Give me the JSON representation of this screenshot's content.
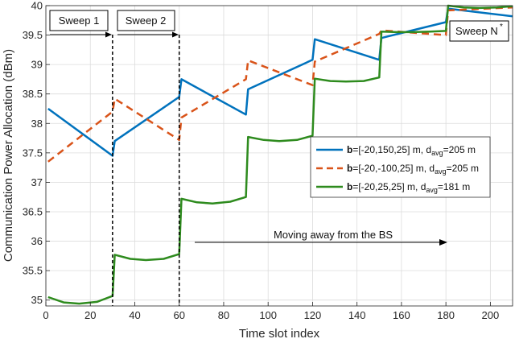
{
  "chart_data": {
    "type": "line",
    "xlabel": "Time slot index",
    "ylabel": "Communication Power Allocation (dBm)",
    "xlim": [
      0,
      210
    ],
    "ylim": [
      34.9,
      40
    ],
    "xticks": [
      0,
      20,
      40,
      60,
      80,
      100,
      120,
      140,
      160,
      180,
      200
    ],
    "yticks": [
      35,
      35.5,
      36,
      36.5,
      37,
      37.5,
      38,
      38.5,
      39,
      39.5,
      40
    ],
    "ytick_labels": [
      "35",
      "35.5",
      "36",
      "36.5",
      "37",
      "37.5",
      "38",
      "38.5",
      "39",
      "39.5",
      "40"
    ],
    "grid": true,
    "legend_position": "right",
    "series": [
      {
        "name": "b=[-20,150,25] m, d_avg=205 m",
        "legend": {
          "bold": "b",
          "pre": "=[-20,150,25] m, d",
          "sub": "avg",
          "post": "=205 m"
        },
        "color": "#0072BD",
        "style": "solid",
        "x": [
          1,
          30,
          31,
          60,
          61,
          90,
          91,
          120,
          121,
          150,
          151,
          180,
          181,
          210
        ],
        "y": [
          38.25,
          37.45,
          37.7,
          38.45,
          38.75,
          38.15,
          38.58,
          39.08,
          39.43,
          39.08,
          39.45,
          39.72,
          39.95,
          39.82
        ]
      },
      {
        "name": "b=[-20,-100,25] m, d_avg=205 m",
        "legend": {
          "bold": "b",
          "pre": "=[-20,-100,25] m, d",
          "sub": "avg",
          "post": "=205 m"
        },
        "color": "#D95319",
        "style": "dashed",
        "x": [
          1,
          30,
          31,
          60,
          61,
          90,
          91,
          120,
          121,
          150,
          151,
          180,
          181,
          210
        ],
        "y": [
          37.35,
          38.2,
          38.42,
          37.72,
          38.1,
          38.75,
          39.07,
          38.65,
          39.05,
          39.52,
          39.58,
          39.5,
          39.92,
          39.97
        ]
      },
      {
        "name": "b=[-20,25,25] m, d_avg=181 m",
        "legend": {
          "bold": "b",
          "pre": "=[-20,25,25] m, d",
          "sub": "avg",
          "post": "=181 m"
        },
        "color": "#2E8B1E",
        "style": "solid",
        "x": [
          1,
          8,
          15,
          23,
          30,
          31,
          38,
          45,
          53,
          60,
          61,
          68,
          75,
          83,
          90,
          91,
          98,
          105,
          113,
          120,
          121,
          128,
          135,
          143,
          150,
          151,
          158,
          165,
          173,
          180,
          181,
          188,
          195,
          203,
          210
        ],
        "y": [
          35.05,
          34.96,
          34.94,
          34.97,
          35.07,
          35.77,
          35.7,
          35.68,
          35.7,
          35.78,
          36.72,
          36.66,
          36.64,
          36.67,
          36.75,
          37.77,
          37.72,
          37.7,
          37.72,
          37.79,
          38.76,
          38.72,
          38.71,
          38.72,
          38.78,
          39.56,
          39.55,
          39.55,
          39.56,
          39.57,
          40.0,
          39.97,
          39.96,
          39.97,
          39.99
        ]
      }
    ],
    "annotations": {
      "sweep1": "Sweep 1",
      "sweep2": "Sweep 2",
      "sweepN": "Sweep N",
      "sweepN_sup": "*",
      "moving": "Moving away from the BS"
    }
  }
}
